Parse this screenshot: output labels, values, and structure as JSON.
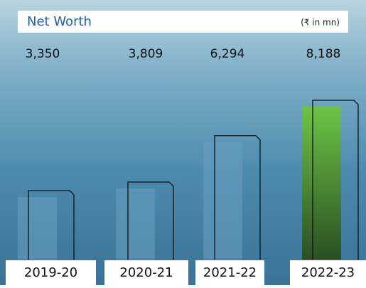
{
  "chart_data": {
    "type": "bar",
    "title": "Net Worth",
    "subtitle": "(₹ in mn)",
    "categories": [
      "2019-20",
      "2020-21",
      "2021-22",
      "2022-23"
    ],
    "values": [
      3350,
      3809,
      6294,
      8188
    ],
    "value_labels": [
      "3,350",
      "3,809",
      "6,294",
      "8,188"
    ],
    "colors": [
      "#6a9fc0",
      "#6a9fc0",
      "#6a9fc0",
      "#5cb33d"
    ]
  }
}
